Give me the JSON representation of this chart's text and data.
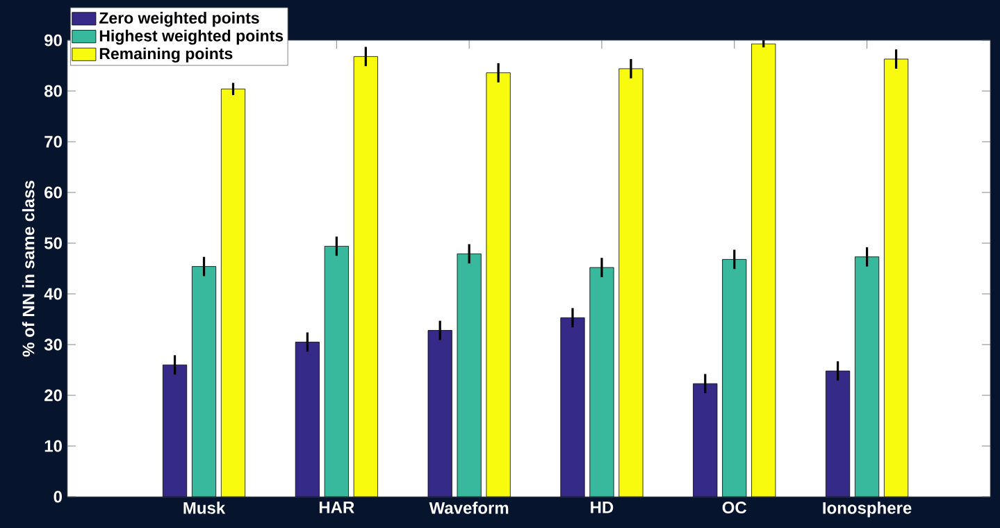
{
  "chart_data": {
    "type": "bar",
    "ylabel": "% of NN in same class",
    "categories": [
      "Musk",
      "HAR",
      "Waveform",
      "HD",
      "OC",
      "Ionosphere"
    ],
    "series": [
      {
        "name": "Zero weighted points",
        "color": "#352a87",
        "values": [
          26.0,
          30.5,
          32.8,
          35.3,
          22.3,
          24.8
        ],
        "errors": [
          1.9,
          1.9,
          1.9,
          1.9,
          1.9,
          1.9
        ]
      },
      {
        "name": "Highest weighted points",
        "color": "#38b99e",
        "values": [
          45.4,
          49.4,
          47.9,
          45.2,
          46.8,
          47.3
        ],
        "errors": [
          1.9,
          1.9,
          1.9,
          1.9,
          1.9,
          1.9
        ]
      },
      {
        "name": "Remaining points",
        "color": "#f9fb0e",
        "values": [
          80.4,
          86.8,
          83.6,
          84.4,
          89.3,
          86.3
        ],
        "errors": [
          1.2,
          1.9,
          1.9,
          1.9,
          0.7,
          1.9
        ]
      }
    ],
    "ylim": [
      0,
      90
    ],
    "yticks": [
      0,
      10,
      20,
      30,
      40,
      50,
      60,
      70,
      80,
      90
    ],
    "legend": "top left"
  }
}
